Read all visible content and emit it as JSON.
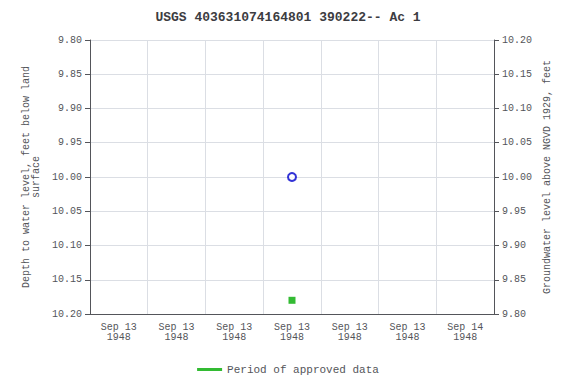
{
  "chart_data": {
    "type": "scatter",
    "title": "USGS 403631074164801 390222-- Ac 1",
    "categories": [
      "Sep 13\n1948",
      "Sep 13\n1948",
      "Sep 13\n1948",
      "Sep 13\n1948",
      "Sep 13\n1948",
      "Sep 13\n1948",
      "Sep 14\n1948"
    ],
    "series": [
      {
        "color": "#0000cc",
        "marker": "open_circle",
        "values": [
          null,
          null,
          null,
          10.0,
          null,
          null,
          null
        ]
      },
      {
        "name": "Period of approved data",
        "color": "#00aa00",
        "marker": "square",
        "values": [
          null,
          null,
          null,
          10.18,
          null,
          null,
          null
        ]
      }
    ],
    "ylabel": "Depth to water level, feet below land\nsurface",
    "y2label": "Groundwater level above NGVD 1929, feet",
    "ylim": [
      10.2,
      9.8
    ],
    "yticks": [
      {
        "value": 9.8,
        "label": "9.80"
      },
      9.85,
      {
        "value": 9.9,
        "label": "9.90"
      },
      9.95,
      {
        "value": 10.0,
        "label": "10.00"
      },
      10.05,
      {
        "value": 10.1,
        "label": "10.10"
      },
      10.15,
      {
        "value": 10.2,
        "label": "10.20"
      }
    ],
    "y2lim": [
      9.8,
      10.2
    ],
    "y2ticks": [
      {
        "value": 9.8,
        "label": "9.80"
      },
      9.85,
      {
        "value": 9.9,
        "label": "9.90"
      },
      9.95,
      {
        "value": 10.0,
        "label": "10.00"
      },
      10.05,
      {
        "value": 10.1,
        "label": "10.10"
      },
      10.15,
      {
        "value": 10.2,
        "label": "10.20"
      }
    ],
    "grid": true,
    "legend": "bottom"
  }
}
